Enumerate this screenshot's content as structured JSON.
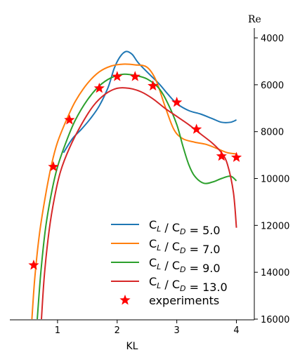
{
  "chart_data": {
    "type": "line",
    "title": "",
    "xlabel": "KL",
    "ylabel": "Re",
    "xlim": [
      0.2,
      4.3
    ],
    "ylim": [
      16000,
      3700
    ],
    "y_inverted": true,
    "y_axis_side": "right",
    "x_ticks": [
      1,
      2,
      3,
      4
    ],
    "y_ticks": [
      4000,
      6000,
      8000,
      10000,
      12000,
      14000,
      16000
    ],
    "legend_position": "lower-right",
    "grid": false,
    "series": [
      {
        "name": "C_L / C_D = 5.0",
        "label_main": "C",
        "label_sub1": "L",
        "label_mid": " / C",
        "label_sub2": "D",
        "label_tail": " = 5.0",
        "color": "#1f77b4",
        "points": [
          [
            1.1,
            8900
          ],
          [
            1.25,
            8300
          ],
          [
            1.4,
            7900
          ],
          [
            1.55,
            7450
          ],
          [
            1.7,
            6900
          ],
          [
            1.85,
            6100
          ],
          [
            1.95,
            5300
          ],
          [
            2.05,
            4800
          ],
          [
            2.15,
            4580
          ],
          [
            2.25,
            4700
          ],
          [
            2.35,
            5050
          ],
          [
            2.5,
            5450
          ],
          [
            2.7,
            5950
          ],
          [
            2.85,
            6400
          ],
          [
            3.0,
            6800
          ],
          [
            3.2,
            7100
          ],
          [
            3.4,
            7250
          ],
          [
            3.6,
            7450
          ],
          [
            3.75,
            7600
          ],
          [
            3.9,
            7600
          ],
          [
            4.0,
            7500
          ]
        ]
      },
      {
        "name": "C_L / C_D = 7.0",
        "label_main": "C",
        "label_sub1": "L",
        "label_mid": " / C",
        "label_sub2": "D",
        "label_tail": " = 7.0",
        "color": "#ff7f0e",
        "points": [
          [
            0.57,
            16000
          ],
          [
            0.62,
            14200
          ],
          [
            0.7,
            12300
          ],
          [
            0.8,
            10700
          ],
          [
            0.9,
            9400
          ],
          [
            1.0,
            8450
          ],
          [
            1.15,
            7500
          ],
          [
            1.3,
            6700
          ],
          [
            1.5,
            5950
          ],
          [
            1.7,
            5450
          ],
          [
            1.9,
            5200
          ],
          [
            2.1,
            5120
          ],
          [
            2.3,
            5150
          ],
          [
            2.5,
            5250
          ],
          [
            2.65,
            5800
          ],
          [
            2.8,
            6900
          ],
          [
            2.95,
            7900
          ],
          [
            3.1,
            8300
          ],
          [
            3.3,
            8450
          ],
          [
            3.5,
            8550
          ],
          [
            3.7,
            8750
          ],
          [
            3.85,
            8900
          ],
          [
            4.0,
            8950
          ]
        ]
      },
      {
        "name": "C_L / C_D = 9.0",
        "label_main": "C",
        "label_sub1": "L",
        "label_mid": " / C",
        "label_sub2": "D",
        "label_tail": " = 9.0",
        "color": "#2ca02c",
        "points": [
          [
            0.66,
            16000
          ],
          [
            0.72,
            14000
          ],
          [
            0.8,
            12100
          ],
          [
            0.9,
            10600
          ],
          [
            1.0,
            9500
          ],
          [
            1.15,
            8400
          ],
          [
            1.3,
            7500
          ],
          [
            1.5,
            6650
          ],
          [
            1.7,
            6050
          ],
          [
            1.9,
            5700
          ],
          [
            2.1,
            5550
          ],
          [
            2.3,
            5600
          ],
          [
            2.5,
            5750
          ],
          [
            2.7,
            6150
          ],
          [
            2.85,
            6800
          ],
          [
            3.0,
            7700
          ],
          [
            3.1,
            8600
          ],
          [
            3.2,
            9400
          ],
          [
            3.3,
            9900
          ],
          [
            3.45,
            10200
          ],
          [
            3.6,
            10150
          ],
          [
            3.75,
            10000
          ],
          [
            3.9,
            9900
          ],
          [
            4.0,
            10100
          ]
        ]
      },
      {
        "name": "C_L / C_D = 13.0",
        "label_main": "C",
        "label_sub1": "L",
        "label_mid": " / C",
        "label_sub2": "D",
        "label_tail": " = 13.0",
        "color": "#d62728",
        "points": [
          [
            0.73,
            16000
          ],
          [
            0.78,
            14100
          ],
          [
            0.86,
            12200
          ],
          [
            0.95,
            10800
          ],
          [
            1.05,
            9700
          ],
          [
            1.2,
            8700
          ],
          [
            1.4,
            7700
          ],
          [
            1.6,
            6900
          ],
          [
            1.8,
            6400
          ],
          [
            2.0,
            6150
          ],
          [
            2.2,
            6150
          ],
          [
            2.4,
            6300
          ],
          [
            2.6,
            6600
          ],
          [
            2.8,
            7000
          ],
          [
            3.0,
            7350
          ],
          [
            3.2,
            7700
          ],
          [
            3.4,
            8100
          ],
          [
            3.6,
            8500
          ],
          [
            3.75,
            8900
          ],
          [
            3.85,
            9400
          ],
          [
            3.95,
            10600
          ],
          [
            4.0,
            12100
          ]
        ]
      }
    ],
    "experiments": {
      "name": "experiments",
      "color": "#ff0000",
      "points": [
        [
          0.6,
          13700
        ],
        [
          0.93,
          9500
        ],
        [
          1.2,
          7500
        ],
        [
          1.7,
          6150
        ],
        [
          2.0,
          5650
        ],
        [
          2.3,
          5650
        ],
        [
          2.6,
          6050
        ],
        [
          3.0,
          6750
        ],
        [
          3.33,
          7900
        ],
        [
          3.75,
          9050
        ],
        [
          4.0,
          9100
        ]
      ]
    }
  }
}
